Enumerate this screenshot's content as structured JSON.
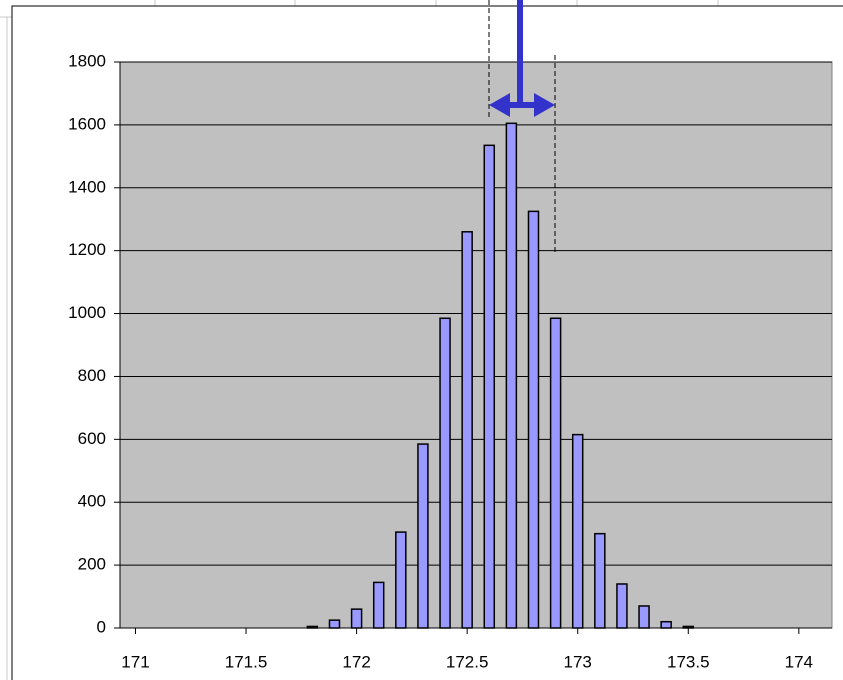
{
  "chart_data": {
    "type": "bar",
    "x": [
      171.8,
      171.9,
      172.0,
      172.1,
      172.2,
      172.3,
      172.4,
      172.5,
      172.6,
      172.7,
      172.8,
      172.9,
      173.0,
      173.1,
      173.2,
      173.3,
      173.4,
      173.5
    ],
    "values": [
      5,
      25,
      60,
      145,
      305,
      585,
      985,
      1260,
      1535,
      1605,
      1325,
      985,
      615,
      300,
      140,
      70,
      20,
      5
    ],
    "color": "#9999ff",
    "xlim": [
      170.93,
      174.15
    ],
    "xticks": [
      171,
      171.5,
      172,
      172.5,
      173,
      173.5,
      174
    ],
    "ylim": [
      0,
      1800
    ],
    "yticks": [
      0,
      200,
      400,
      600,
      800,
      1000,
      1200,
      1400,
      1600,
      1800
    ],
    "grid": true
  }
}
